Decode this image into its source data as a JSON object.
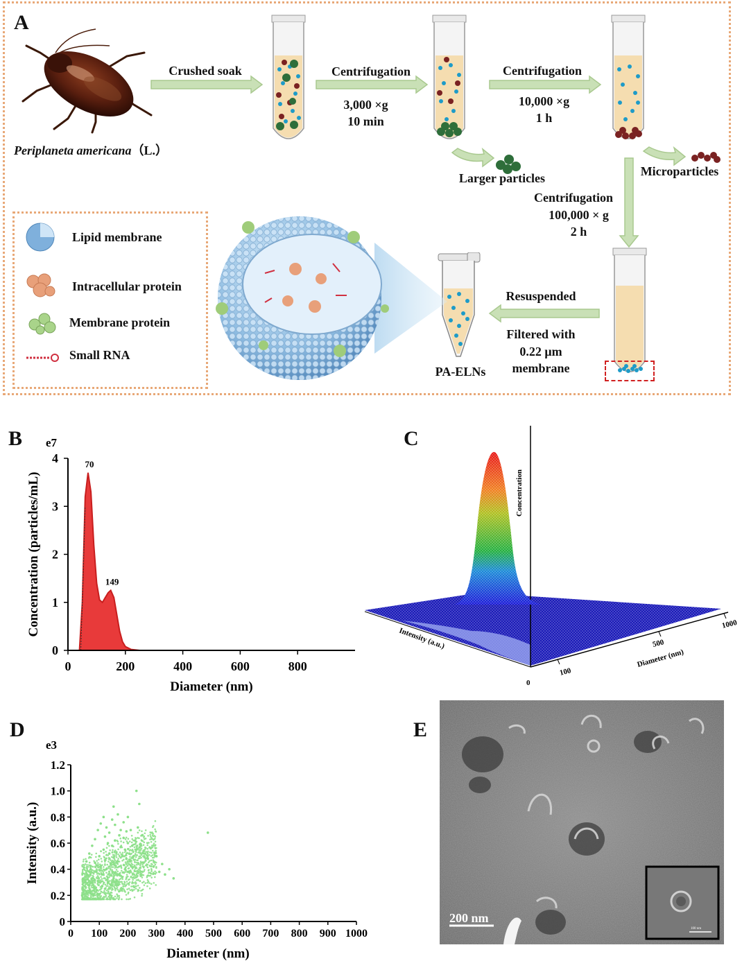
{
  "panelA": {
    "label": "A",
    "species": "Periplaneta americana",
    "species_suffix": "（L.）",
    "step1": "Crushed soak",
    "step2": {
      "title": "Centrifugation",
      "speed": "3,000 ×g",
      "time": "10 min"
    },
    "step3": {
      "title": "Centrifugation",
      "speed": "10,000 ×g",
      "time": "1 h"
    },
    "step4": {
      "title": "Centrifugation",
      "speed": "100,000 × g",
      "time": "2 h"
    },
    "byproduct1": "Larger particles",
    "byproduct2": "Microparticles",
    "resuspend": "Resuspended",
    "filter": "Filtered with",
    "filter_size": "0.22 μm",
    "filter_unit": "membrane",
    "product": "PA-ELNs",
    "legend": [
      {
        "icon": "lipid-membrane-icon",
        "label": "Lipid membrane"
      },
      {
        "icon": "intracellular-protein-icon",
        "label": "Intracellular protein"
      },
      {
        "icon": "membrane-protein-icon",
        "label": "Membrane protein"
      },
      {
        "icon": "small-rna-icon",
        "label": "Small RNA"
      }
    ],
    "colors": {
      "border": "#e8a877",
      "arrow": "#c9e0b6",
      "arrow_edge": "#a9c98f"
    }
  },
  "panelB": {
    "label": "B",
    "exponent": "e7"
  },
  "panelC": {
    "label": "C",
    "zlabel": "Concentration",
    "intensity_label": "Intensity (a.u.)",
    "diameter_label": "Diameter (nm)",
    "ticks": [
      "0",
      "100",
      "500",
      "1000"
    ]
  },
  "panelD": {
    "label": "D",
    "exponent": "e3"
  },
  "panelE": {
    "label": "E",
    "scalebar": "200 nm",
    "inset_scalebar": "100 nm"
  },
  "chart_data": [
    {
      "id": "B",
      "type": "area",
      "title": "",
      "xlabel": "Diameter (nm)",
      "ylabel": "Concentration (particles/mL)",
      "y_multiplier": "e7",
      "xlim": [
        0,
        1000
      ],
      "ylim": [
        0,
        4
      ],
      "xticks": [
        0,
        200,
        400,
        600,
        800
      ],
      "yticks": [
        0,
        1,
        2,
        3,
        4
      ],
      "peaks": [
        {
          "x": 70,
          "y": 3.7,
          "label": "70"
        },
        {
          "x": 149,
          "y": 1.25,
          "label": "149"
        }
      ],
      "x": [
        40,
        50,
        60,
        70,
        80,
        90,
        100,
        110,
        120,
        130,
        140,
        149,
        160,
        170,
        180,
        190,
        200,
        220,
        250,
        300,
        1000
      ],
      "values": [
        0.0,
        1.0,
        3.2,
        3.7,
        3.3,
        2.2,
        1.4,
        1.05,
        1.0,
        1.1,
        1.2,
        1.25,
        1.1,
        0.75,
        0.4,
        0.18,
        0.08,
        0.02,
        0.0,
        0.0,
        0.0
      ],
      "color": "#e83a3a"
    },
    {
      "id": "D",
      "type": "scatter",
      "title": "",
      "xlabel": "Diameter (nm)",
      "ylabel": "Intensity (a.u.)",
      "y_multiplier": "e3",
      "xlim": [
        0,
        1000
      ],
      "ylim": [
        0,
        1.2
      ],
      "xticks": [
        0,
        100,
        200,
        300,
        400,
        500,
        600,
        700,
        800,
        900,
        1000
      ],
      "yticks": [
        0,
        0.2,
        0.4,
        0.6,
        0.8,
        1.0,
        1.2
      ],
      "ytick_labels": [
        "0",
        "0.2",
        "0.4",
        "0.6",
        "0.8",
        "1.0",
        "1.2"
      ],
      "points": [
        [
          40,
          0.2
        ],
        [
          45,
          0.24
        ],
        [
          50,
          0.3
        ],
        [
          55,
          0.22
        ],
        [
          60,
          0.35
        ],
        [
          65,
          0.28
        ],
        [
          70,
          0.4
        ],
        [
          75,
          0.33
        ],
        [
          80,
          0.26
        ],
        [
          85,
          0.45
        ],
        [
          90,
          0.38
        ],
        [
          95,
          0.31
        ],
        [
          100,
          0.5
        ],
        [
          105,
          0.42
        ],
        [
          110,
          0.36
        ],
        [
          115,
          0.55
        ],
        [
          120,
          0.47
        ],
        [
          125,
          0.4
        ],
        [
          130,
          0.6
        ],
        [
          135,
          0.52
        ],
        [
          140,
          0.44
        ],
        [
          145,
          0.58
        ],
        [
          150,
          0.49
        ],
        [
          155,
          0.62
        ],
        [
          160,
          0.53
        ],
        [
          165,
          0.46
        ],
        [
          170,
          0.66
        ],
        [
          175,
          0.57
        ],
        [
          180,
          0.5
        ],
        [
          185,
          0.64
        ],
        [
          190,
          0.55
        ],
        [
          195,
          0.48
        ],
        [
          200,
          0.6
        ],
        [
          205,
          0.52
        ],
        [
          210,
          0.7
        ],
        [
          215,
          0.58
        ],
        [
          220,
          0.5
        ],
        [
          225,
          0.62
        ],
        [
          230,
          0.55
        ],
        [
          235,
          0.72
        ],
        [
          240,
          0.9
        ],
        [
          245,
          0.58
        ],
        [
          250,
          0.66
        ],
        [
          255,
          0.45
        ],
        [
          260,
          0.52
        ],
        [
          270,
          0.48
        ],
        [
          280,
          0.56
        ],
        [
          290,
          0.42
        ],
        [
          300,
          0.5
        ],
        [
          310,
          0.38
        ],
        [
          320,
          0.44
        ],
        [
          330,
          0.36
        ],
        [
          345,
          0.4
        ],
        [
          360,
          0.33
        ],
        [
          60,
          0.18
        ],
        [
          70,
          0.22
        ],
        [
          80,
          0.2
        ],
        [
          90,
          0.24
        ],
        [
          100,
          0.21
        ],
        [
          110,
          0.27
        ],
        [
          120,
          0.25
        ],
        [
          130,
          0.3
        ],
        [
          140,
          0.28
        ],
        [
          150,
          0.33
        ],
        [
          160,
          0.31
        ],
        [
          170,
          0.36
        ],
        [
          180,
          0.34
        ],
        [
          190,
          0.4
        ],
        [
          200,
          0.38
        ],
        [
          210,
          0.43
        ],
        [
          55,
          0.46
        ],
        [
          65,
          0.52
        ],
        [
          75,
          0.58
        ],
        [
          85,
          0.63
        ],
        [
          95,
          0.7
        ],
        [
          105,
          0.75
        ],
        [
          115,
          0.8
        ],
        [
          125,
          0.72
        ],
        [
          135,
          0.68
        ],
        [
          145,
          0.78
        ],
        [
          155,
          0.74
        ],
        [
          165,
          0.82
        ],
        [
          175,
          0.7
        ],
        [
          185,
          0.76
        ],
        [
          195,
          0.69
        ],
        [
          150,
          0.88
        ],
        [
          230,
          1.0
        ],
        [
          480,
          0.68
        ],
        [
          200,
          0.8
        ],
        [
          120,
          0.65
        ]
      ],
      "color": "#8de08a"
    }
  ]
}
